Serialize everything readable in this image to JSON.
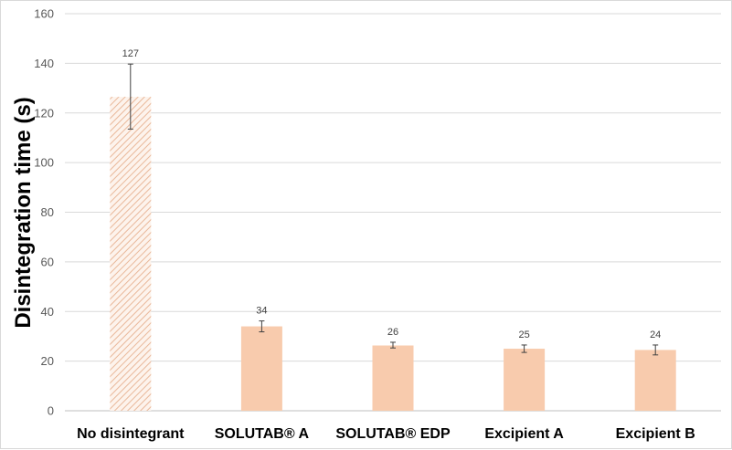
{
  "chart_data": {
    "type": "bar",
    "ylabel": "Disintegration time (s)",
    "xlabel": "",
    "ylim": [
      0,
      160
    ],
    "ytick_step": 20,
    "grid": true,
    "categories": [
      "No disintegrant",
      "SOLUTAB® A",
      "SOLUTAB® EDP",
      "Excipient A",
      "Excipient B"
    ],
    "values": [
      127,
      34,
      26,
      25,
      24
    ],
    "bar_values_exact": [
      126.5,
      34,
      26.3,
      25,
      24.5
    ],
    "error_low": [
      113.5,
      31.8,
      25.3,
      23.5,
      22.5
    ],
    "error_high": [
      139.7,
      36.2,
      27.6,
      26.5,
      26.5
    ],
    "data_labels": [
      "127",
      "34",
      "26",
      "25",
      "24"
    ],
    "bar_fill": [
      "hatched",
      "solid",
      "solid",
      "solid",
      "solid"
    ],
    "colors": {
      "bar": "#f8cbad",
      "hatch": "#e9b89a",
      "hatch_bg": "#fdf3ec",
      "grid": "#d9d9d9",
      "axis": "#bfbfbf",
      "error": "#404040"
    }
  }
}
